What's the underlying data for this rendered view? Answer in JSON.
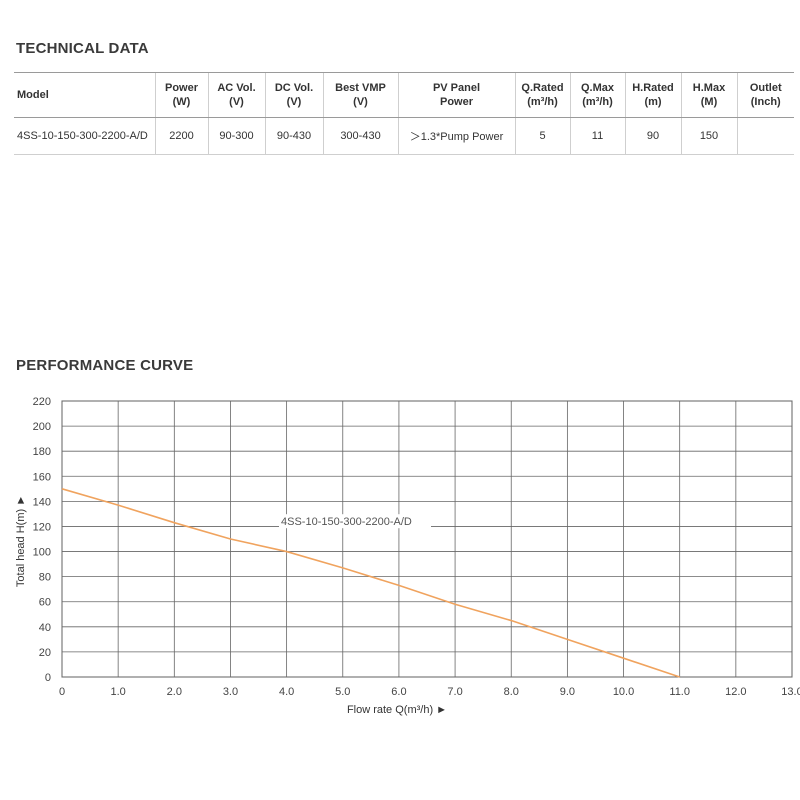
{
  "technical_data": {
    "title": "TECHNICAL DATA",
    "headers": [
      {
        "line1": "Model",
        "line2": ""
      },
      {
        "line1": "Power",
        "line2": "(W)"
      },
      {
        "line1": "AC Vol.",
        "line2": "(V)"
      },
      {
        "line1": "DC Vol.",
        "line2": "(V)"
      },
      {
        "line1": "Best VMP",
        "line2": "(V)"
      },
      {
        "line1": "PV Panel",
        "line2": "Power"
      },
      {
        "line1": "Q.Rated",
        "line2": "(m³/h)"
      },
      {
        "line1": "Q.Max",
        "line2": "(m³/h)"
      },
      {
        "line1": "H.Rated",
        "line2": "(m)"
      },
      {
        "line1": "H.Max",
        "line2": "(M)"
      },
      {
        "line1": "Outlet",
        "line2": "(Inch)"
      }
    ],
    "row": [
      "4SS-10-150-300-2200-A/D",
      "2200",
      "90-300",
      "90-430",
      "300-430",
      "＞1.3*Pump Power",
      "5",
      "11",
      "90",
      "150",
      ""
    ]
  },
  "performance": {
    "title": "PERFORMANCE CURVE"
  },
  "chart_data": {
    "type": "line",
    "xlabel": "Flow rate Q(m³/h) ►",
    "ylabel": "Total head H(m) ►",
    "xlim": [
      0,
      13
    ],
    "ylim": [
      0,
      220
    ],
    "x_ticks": [
      "0",
      "1.0",
      "2.0",
      "3.0",
      "4.0",
      "5.0",
      "6.0",
      "7.0",
      "8.0",
      "9.0",
      "10.0",
      "11.0",
      "12.0",
      "13.0"
    ],
    "y_ticks": [
      "0",
      "20",
      "40",
      "60",
      "80",
      "100",
      "120",
      "140",
      "160",
      "180",
      "200",
      "220"
    ],
    "grid": true,
    "series": [
      {
        "name": "4SS-10-150-300-2200-A/D",
        "color": "#f0a35e",
        "x": [
          0,
          1,
          2,
          3,
          4,
          5,
          6,
          7,
          8,
          9,
          10,
          11
        ],
        "y": [
          150,
          137,
          123,
          110,
          100,
          87,
          73,
          58,
          45,
          30,
          15,
          0
        ]
      }
    ]
  }
}
